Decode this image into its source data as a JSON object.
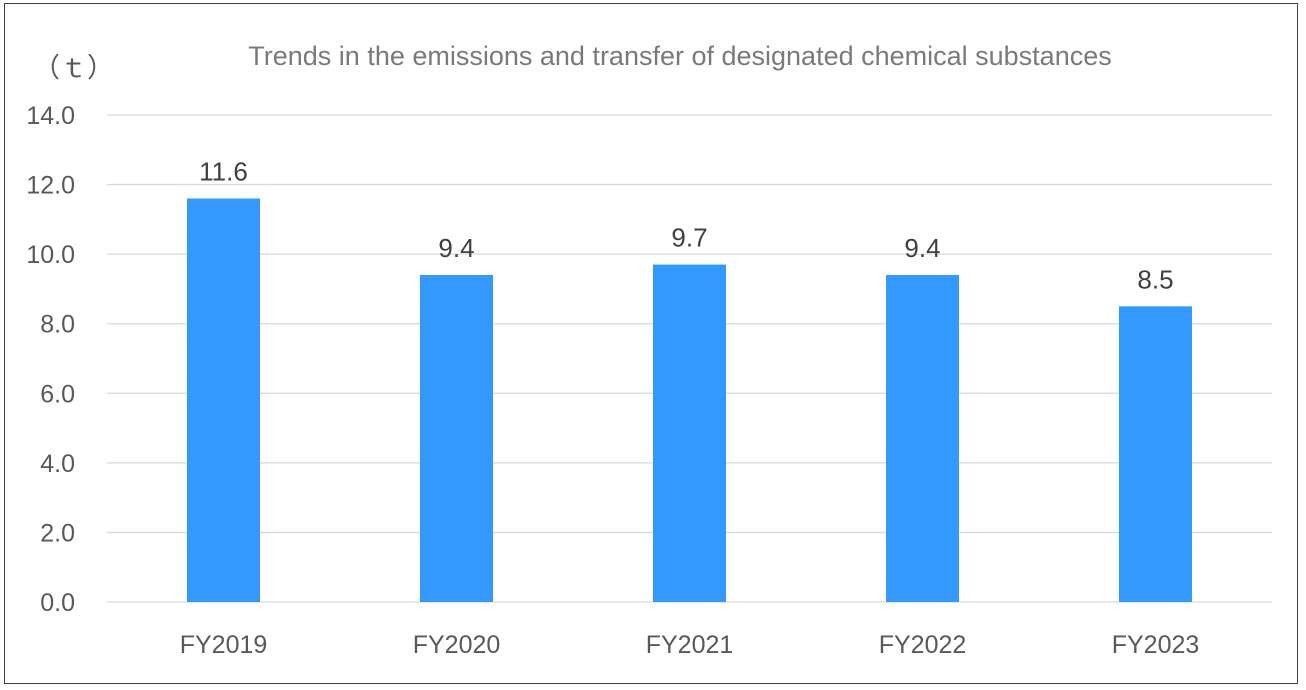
{
  "chart_data": {
    "type": "bar",
    "title": "Trends in the emissions and transfer of designated chemical substances",
    "ylabel": "（ｔ）",
    "xlabel": "",
    "categories": [
      "FY2019",
      "FY2020",
      "FY2021",
      "FY2022",
      "FY2023"
    ],
    "values": [
      11.6,
      9.4,
      9.7,
      9.4,
      8.5
    ],
    "data_labels": [
      "11.6",
      "9.4",
      "9.7",
      "9.4",
      "8.5"
    ],
    "ylim": [
      0,
      14
    ],
    "yticks": [
      "0.0",
      "2.0",
      "4.0",
      "6.0",
      "8.0",
      "10.0",
      "12.0",
      "14.0"
    ],
    "grid": true,
    "legend": "none",
    "bar_color": "#3399ff"
  }
}
